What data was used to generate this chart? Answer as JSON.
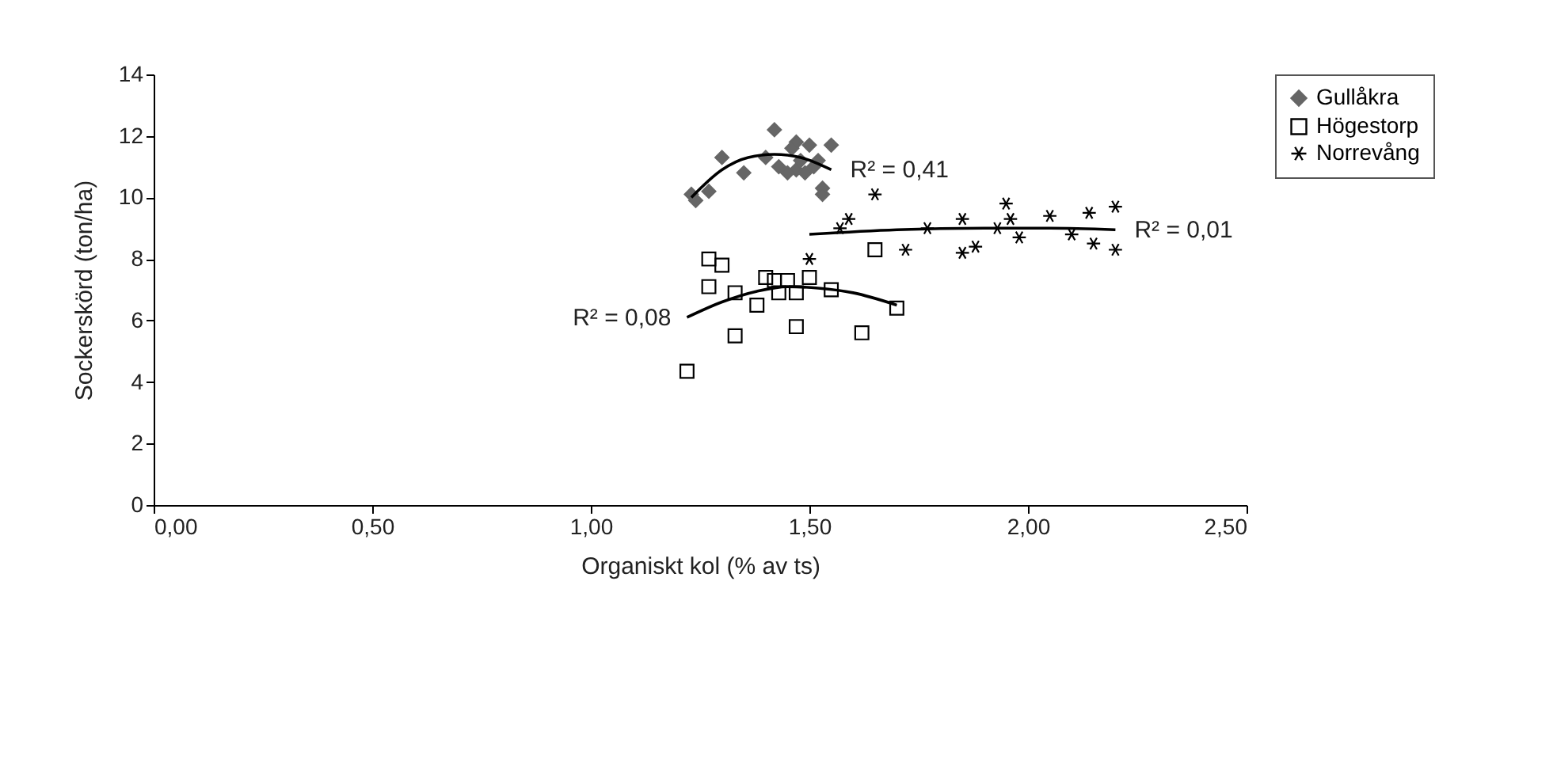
{
  "chart_data": {
    "type": "scatter",
    "xlabel": "Organiskt kol (% av ts)",
    "ylabel": "Sockerskörd (ton/ha)",
    "xlim": [
      0,
      2.5
    ],
    "xticks": [
      {
        "value": 0,
        "label": "0,00"
      },
      {
        "value": 0.5,
        "label": "0,50"
      },
      {
        "value": 1,
        "label": "1,00"
      },
      {
        "value": 1.5,
        "label": "1,50"
      },
      {
        "value": 2,
        "label": "2,00"
      },
      {
        "value": 2.5,
        "label": "2,50"
      }
    ],
    "ylim": [
      0,
      14
    ],
    "yticks": [
      0,
      2,
      4,
      6,
      8,
      10,
      12,
      14
    ],
    "grid": false,
    "legend": "right",
    "series": [
      {
        "name": "Gullåkra",
        "color": "#666666",
        "marker": "diamond",
        "x": [
          1.23,
          1.24,
          1.27,
          1.3,
          1.35,
          1.4,
          1.42,
          1.43,
          1.45,
          1.46,
          1.47,
          1.47,
          1.48,
          1.49,
          1.5,
          1.51,
          1.52,
          1.53,
          1.53,
          1.55
        ],
        "values": [
          10.1,
          9.9,
          10.2,
          11.3,
          10.8,
          11.3,
          12.2,
          11.0,
          10.8,
          11.6,
          11.8,
          10.9,
          11.2,
          10.8,
          11.7,
          11.0,
          11.2,
          10.3,
          10.1,
          11.7
        ]
      },
      {
        "name": "Högestorp",
        "color": "#000000",
        "marker": "square",
        "x": [
          1.22,
          1.27,
          1.27,
          1.3,
          1.33,
          1.33,
          1.38,
          1.4,
          1.42,
          1.43,
          1.45,
          1.47,
          1.47,
          1.5,
          1.55,
          1.62,
          1.65,
          1.7
        ],
        "values": [
          4.35,
          8.0,
          7.1,
          7.8,
          5.5,
          6.9,
          6.5,
          7.4,
          7.3,
          6.9,
          7.3,
          6.9,
          5.8,
          7.4,
          7.0,
          5.6,
          8.3,
          6.4
        ]
      },
      {
        "name": "Norrevång",
        "color": "#000000",
        "marker": "cross",
        "x": [
          1.5,
          1.57,
          1.59,
          1.65,
          1.72,
          1.77,
          1.85,
          1.85,
          1.88,
          1.93,
          1.95,
          1.96,
          1.98,
          2.05,
          2.1,
          2.14,
          2.15,
          2.2,
          2.2
        ],
        "values": [
          8.0,
          9.0,
          9.3,
          10.1,
          8.3,
          9.0,
          9.3,
          8.2,
          8.4,
          9.0,
          9.8,
          9.3,
          8.7,
          9.4,
          8.8,
          9.5,
          8.5,
          9.7,
          8.3
        ]
      },
      {
        "type": "line",
        "color": "#000000",
        "x": [
          1.23,
          1.3,
          1.36,
          1.42,
          1.48,
          1.55
        ],
        "values": [
          10.0,
          10.9,
          11.3,
          11.4,
          11.3,
          10.9
        ]
      },
      {
        "type": "line",
        "color": "#000000",
        "x": [
          1.22,
          1.3,
          1.38,
          1.45,
          1.52,
          1.6,
          1.7
        ],
        "values": [
          6.1,
          6.6,
          6.95,
          7.1,
          7.05,
          6.9,
          6.5
        ]
      },
      {
        "type": "line",
        "color": "#000000",
        "x": [
          1.5,
          1.7,
          1.9,
          2.05,
          2.2
        ],
        "values": [
          8.8,
          8.95,
          9.0,
          9.0,
          8.95
        ]
      }
    ],
    "annotations": [
      {
        "text": "R² = 0,41",
        "x": 1.55,
        "y": 10.9
      },
      {
        "text": "R² = 0,01",
        "x": 2.2,
        "y": 8.95
      },
      {
        "text": "R² = 0,08",
        "x": 1.22,
        "y": 6.1
      }
    ]
  }
}
